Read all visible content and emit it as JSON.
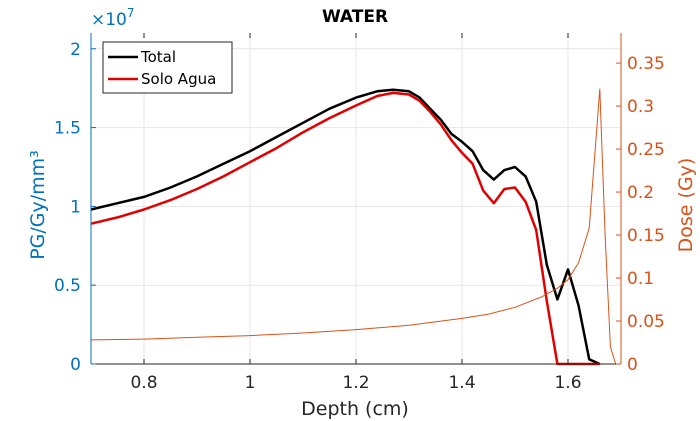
{
  "chart_data": {
    "type": "line",
    "title": "WATER",
    "xlabel": "Depth (cm)",
    "ylabel_left": "PG/Gy/mm³",
    "ylabel_right": "Dose (Gy)",
    "left_exponent_label": "×10",
    "left_exponent_power": "7",
    "xlim": [
      0.7,
      1.7
    ],
    "ylim_left": [
      0,
      2.1
    ],
    "ylim_right": [
      0,
      0.385
    ],
    "x_ticks": [
      0.8,
      1.0,
      1.2,
      1.4,
      1.6
    ],
    "x_tick_labels": [
      "0.8",
      "1",
      "1.2",
      "1.4",
      "1.6"
    ],
    "y_left_ticks": [
      0,
      0.5,
      1.0,
      1.5,
      2.0
    ],
    "y_left_tick_labels": [
      "0",
      "0.5",
      "1",
      "1.5",
      "2"
    ],
    "y_right_ticks": [
      0,
      0.05,
      0.1,
      0.15,
      0.2,
      0.25,
      0.3,
      0.35
    ],
    "y_right_tick_labels": [
      "0",
      "0.05",
      "0.1",
      "0.15",
      "0.2",
      "0.25",
      "0.3",
      "0.35"
    ],
    "grid": true,
    "legend_position": "top-left",
    "colors": {
      "total": "#000000",
      "solo": "#e00000",
      "dose": "#d95319",
      "left_axis": "#0072bd",
      "right_axis": "#d95319",
      "grid": "#e6e6e6"
    },
    "series": [
      {
        "name": "Total",
        "axis": "left",
        "x": [
          0.7,
          0.75,
          0.8,
          0.85,
          0.9,
          0.95,
          1.0,
          1.05,
          1.1,
          1.15,
          1.2,
          1.24,
          1.27,
          1.3,
          1.32,
          1.34,
          1.36,
          1.38,
          1.4,
          1.42,
          1.44,
          1.46,
          1.48,
          1.5,
          1.52,
          1.54,
          1.56,
          1.58,
          1.6,
          1.62,
          1.64,
          1.66
        ],
        "y": [
          0.98,
          1.02,
          1.06,
          1.12,
          1.19,
          1.27,
          1.35,
          1.44,
          1.53,
          1.62,
          1.69,
          1.73,
          1.74,
          1.73,
          1.69,
          1.62,
          1.55,
          1.46,
          1.41,
          1.35,
          1.23,
          1.17,
          1.23,
          1.25,
          1.19,
          1.03,
          0.63,
          0.41,
          0.6,
          0.37,
          0.03,
          0.0
        ]
      },
      {
        "name": "Solo Agua",
        "axis": "left",
        "x": [
          0.7,
          0.75,
          0.8,
          0.85,
          0.9,
          0.95,
          1.0,
          1.05,
          1.1,
          1.15,
          1.2,
          1.24,
          1.27,
          1.3,
          1.32,
          1.34,
          1.36,
          1.38,
          1.4,
          1.42,
          1.44,
          1.46,
          1.48,
          1.5,
          1.52,
          1.54,
          1.56,
          1.58,
          1.6,
          1.62,
          1.64,
          1.66
        ],
        "y": [
          0.89,
          0.93,
          0.98,
          1.04,
          1.11,
          1.19,
          1.28,
          1.37,
          1.47,
          1.56,
          1.64,
          1.7,
          1.72,
          1.71,
          1.67,
          1.6,
          1.52,
          1.42,
          1.34,
          1.27,
          1.1,
          1.02,
          1.11,
          1.12,
          1.03,
          0.85,
          0.4,
          0.0,
          0.0,
          0.0,
          0.0,
          0.0
        ]
      },
      {
        "name": "Dose",
        "axis": "right",
        "x": [
          0.7,
          0.8,
          0.9,
          1.0,
          1.1,
          1.2,
          1.3,
          1.4,
          1.45,
          1.5,
          1.55,
          1.58,
          1.6,
          1.62,
          1.64,
          1.66,
          1.67,
          1.68,
          1.69,
          1.7
        ],
        "y": [
          0.028,
          0.029,
          0.031,
          0.033,
          0.036,
          0.04,
          0.045,
          0.053,
          0.058,
          0.066,
          0.078,
          0.088,
          0.098,
          0.118,
          0.158,
          0.32,
          0.15,
          0.02,
          0.0,
          0.0
        ]
      }
    ]
  }
}
